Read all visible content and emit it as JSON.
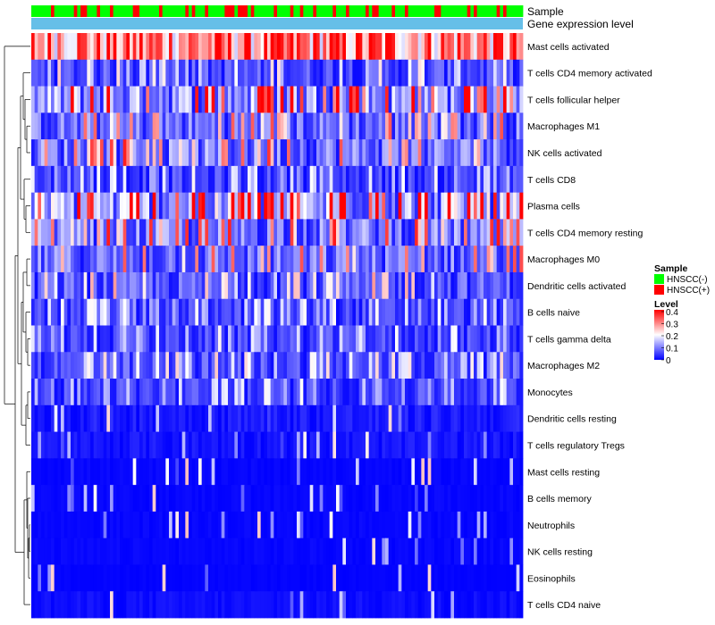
{
  "chart_data": {
    "type": "heatmap",
    "title": "",
    "annotation_labels": {
      "sample": "Sample",
      "gene_expression": "Gene expression level"
    },
    "sample_colors": {
      "HNSCC(-)": "#00ff00",
      "HNSCC(+)": "#ff0000"
    },
    "gene_expression_bar_color": "#66bfe8",
    "rows": [
      {
        "name": "Mast cells activated",
        "mean": 0.3
      },
      {
        "name": "T cells CD4 memory activated",
        "mean": 0.07
      },
      {
        "name": "T cells follicular helper",
        "mean": 0.14
      },
      {
        "name": "Macrophages M1",
        "mean": 0.1
      },
      {
        "name": "NK cells activated",
        "mean": 0.11
      },
      {
        "name": "T cells CD8",
        "mean": 0.06
      },
      {
        "name": "Plasma cells",
        "mean": 0.15
      },
      {
        "name": "T cells CD4 memory resting",
        "mean": 0.11
      },
      {
        "name": "Macrophages M0",
        "mean": 0.1
      },
      {
        "name": "Dendritic cells activated",
        "mean": 0.08
      },
      {
        "name": "B cells naive",
        "mean": 0.06
      },
      {
        "name": "T cells gamma delta",
        "mean": 0.06
      },
      {
        "name": "Macrophages M2",
        "mean": 0.07
      },
      {
        "name": "Monocytes",
        "mean": 0.06
      },
      {
        "name": "Dendritic cells resting",
        "mean": 0.04
      },
      {
        "name": "T cells regulatory  Tregs",
        "mean": 0.03
      },
      {
        "name": "Mast cells resting",
        "mean": 0.01
      },
      {
        "name": "B cells memory",
        "mean": 0.01
      },
      {
        "name": "Neutrophils",
        "mean": 0.01
      },
      {
        "name": "NK cells resting",
        "mean": 0.01
      },
      {
        "name": "Eosinophils",
        "mean": 0.005
      },
      {
        "name": "T cells CD4 naive",
        "mean": 0.02
      }
    ],
    "legend": {
      "sample_title": "Sample",
      "sample_entries": [
        {
          "label": "HNSCC(-)",
          "color": "#00ff00"
        },
        {
          "label": "HNSCC(+)",
          "color": "#ff0000"
        }
      ],
      "level_title": "Level",
      "level_ticks": [
        "0.4",
        "0.3",
        "0.2",
        "0.1",
        "0"
      ],
      "level_range": [
        0,
        0.4
      ],
      "level_colors": [
        "#0000ff",
        "#ffffff",
        "#ff0000"
      ]
    }
  }
}
